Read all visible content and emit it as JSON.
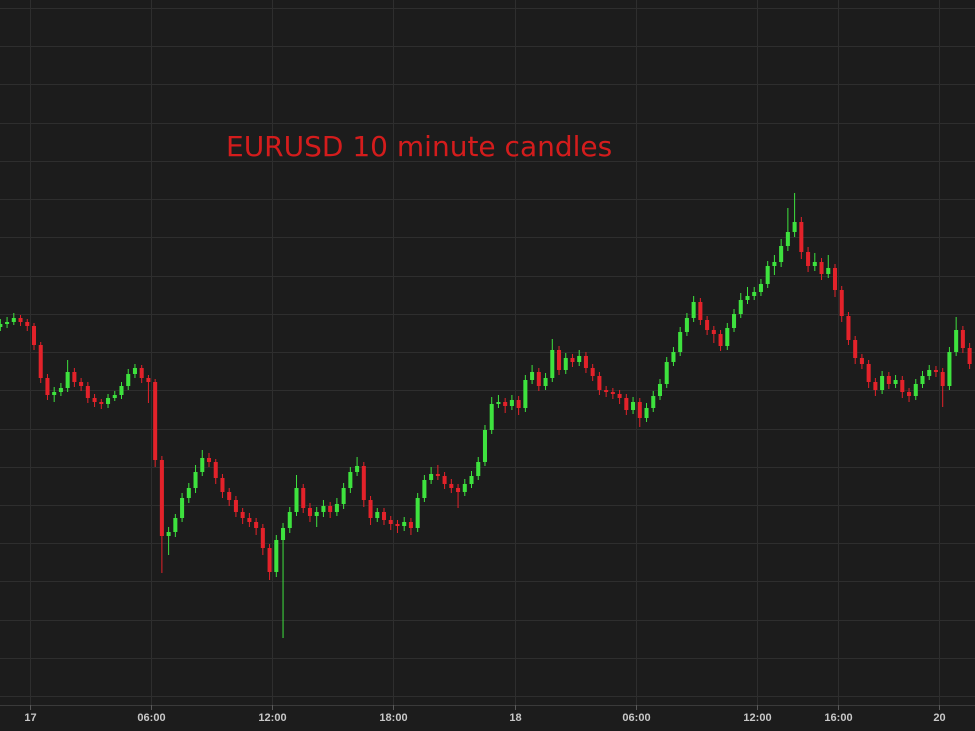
{
  "chart_data": {
    "type": "candlestick",
    "title": "EURUSD 10 minute candles",
    "xlim": [
      -89,
      2808
    ],
    "xticks": [
      {
        "value": 0,
        "label": "17"
      },
      {
        "value": 360,
        "label": "06:00"
      },
      {
        "value": 720,
        "label": "12:00"
      },
      {
        "value": 1080,
        "label": "18:00"
      },
      {
        "value": 1440,
        "label": "18"
      },
      {
        "value": 1800,
        "label": "06:00"
      },
      {
        "value": 2160,
        "label": "12:00"
      },
      {
        "value": 2400,
        "label": "16:00"
      },
      {
        "value": 2700,
        "label": "20"
      }
    ],
    "ylim": [
      0,
      705
    ],
    "yticks": [
      9,
      47,
      85,
      124,
      162,
      200,
      238,
      276,
      315,
      353,
      391,
      429,
      468,
      506,
      544,
      582,
      621,
      659,
      697
    ],
    "grid": true,
    "up_color": "#3ee23e",
    "down_color": "#e3222a",
    "x": [
      -88,
      -68,
      -48,
      -28,
      -8,
      12,
      32,
      52,
      72,
      92,
      112,
      132,
      152,
      172,
      192,
      212,
      232,
      252,
      272,
      292,
      312,
      332,
      352,
      372,
      392,
      412,
      432,
      452,
      472,
      492,
      512,
      532,
      552,
      572,
      592,
      612,
      632,
      652,
      672,
      692,
      712,
      732,
      752,
      772,
      792,
      812,
      832,
      852,
      872,
      892,
      912,
      932,
      952,
      972,
      992,
      1012,
      1032,
      1052,
      1072,
      1092,
      1112,
      1132,
      1152,
      1172,
      1192,
      1212,
      1232,
      1252,
      1272,
      1292,
      1312,
      1332,
      1352,
      1372,
      1392,
      1412,
      1432,
      1452,
      1472,
      1492,
      1512,
      1532,
      1552,
      1572,
      1592,
      1612,
      1632,
      1652,
      1672,
      1692,
      1712,
      1732,
      1752,
      1772,
      1792,
      1812,
      1832,
      1852,
      1872,
      1892,
      1912,
      1932,
      1952,
      1972,
      1992,
      2012,
      2032,
      2052,
      2072,
      2092,
      2112,
      2132,
      2152,
      2172,
      2192,
      2212,
      2232,
      2252,
      2272,
      2292,
      2312,
      2332,
      2352,
      2372,
      2392,
      2412,
      2432,
      2452,
      2472,
      2492,
      2512,
      2532,
      2552,
      2572,
      2592,
      2612,
      2632,
      2652,
      2672,
      2692,
      2712,
      2732,
      2752,
      2772,
      2792
    ],
    "candles": [
      [
        378,
        386,
        374,
        381
      ],
      [
        381,
        388,
        377,
        383
      ],
      [
        383,
        392,
        380,
        387
      ],
      [
        387,
        390,
        379,
        383
      ],
      [
        383,
        386,
        374,
        379
      ],
      [
        379,
        382,
        355,
        360
      ],
      [
        360,
        363,
        322,
        327
      ],
      [
        327,
        331,
        305,
        310
      ],
      [
        310,
        318,
        303,
        313
      ],
      [
        313,
        322,
        309,
        317
      ],
      [
        317,
        345,
        313,
        333
      ],
      [
        333,
        337,
        318,
        323
      ],
      [
        323,
        327,
        314,
        319
      ],
      [
        319,
        323,
        302,
        307
      ],
      [
        307,
        311,
        298,
        303
      ],
      [
        303,
        306,
        296,
        301
      ],
      [
        301,
        311,
        297,
        307
      ],
      [
        307,
        314,
        304,
        310
      ],
      [
        310,
        323,
        306,
        319
      ],
      [
        319,
        336,
        315,
        331
      ],
      [
        331,
        341,
        327,
        337
      ],
      [
        337,
        340,
        322,
        327
      ],
      [
        327,
        330,
        302,
        323
      ],
      [
        323,
        326,
        238,
        245
      ],
      [
        245,
        249,
        132,
        169
      ],
      [
        169,
        178,
        150,
        173
      ],
      [
        173,
        191,
        168,
        187
      ],
      [
        187,
        212,
        183,
        207
      ],
      [
        207,
        222,
        202,
        217
      ],
      [
        217,
        240,
        212,
        233
      ],
      [
        233,
        255,
        229,
        247
      ],
      [
        247,
        252,
        238,
        243
      ],
      [
        243,
        246,
        221,
        227
      ],
      [
        227,
        231,
        207,
        213
      ],
      [
        213,
        217,
        199,
        205
      ],
      [
        205,
        209,
        188,
        193
      ],
      [
        193,
        197,
        181,
        187
      ],
      [
        187,
        192,
        178,
        183
      ],
      [
        183,
        187,
        170,
        177
      ],
      [
        177,
        181,
        150,
        157
      ],
      [
        157,
        161,
        125,
        133
      ],
      [
        133,
        170,
        128,
        165
      ],
      [
        165,
        182,
        67,
        177
      ],
      [
        177,
        198,
        172,
        193
      ],
      [
        193,
        230,
        189,
        217
      ],
      [
        217,
        221,
        192,
        197
      ],
      [
        197,
        202,
        183,
        189
      ],
      [
        189,
        198,
        178,
        193
      ],
      [
        193,
        205,
        188,
        199
      ],
      [
        199,
        203,
        187,
        193
      ],
      [
        193,
        207,
        189,
        201
      ],
      [
        201,
        222,
        196,
        217
      ],
      [
        217,
        238,
        212,
        233
      ],
      [
        233,
        248,
        229,
        239
      ],
      [
        239,
        243,
        198,
        205
      ],
      [
        205,
        209,
        180,
        187
      ],
      [
        187,
        197,
        183,
        193
      ],
      [
        193,
        197,
        180,
        185
      ],
      [
        185,
        189,
        175,
        181
      ],
      [
        181,
        185,
        172,
        179
      ],
      [
        179,
        188,
        174,
        183
      ],
      [
        183,
        187,
        170,
        177
      ],
      [
        177,
        212,
        173,
        207
      ],
      [
        207,
        230,
        203,
        225
      ],
      [
        225,
        238,
        221,
        231
      ],
      [
        231,
        240,
        225,
        229
      ],
      [
        229,
        233,
        216,
        221
      ],
      [
        221,
        226,
        212,
        217
      ],
      [
        217,
        221,
        197,
        213
      ],
      [
        213,
        226,
        209,
        221
      ],
      [
        221,
        234,
        217,
        229
      ],
      [
        229,
        248,
        225,
        243
      ],
      [
        243,
        280,
        239,
        275
      ],
      [
        275,
        308,
        271,
        301
      ],
      [
        301,
        310,
        297,
        303
      ],
      [
        303,
        307,
        292,
        299
      ],
      [
        299,
        310,
        295,
        305
      ],
      [
        305,
        309,
        290,
        297
      ],
      [
        297,
        330,
        293,
        325
      ],
      [
        325,
        340,
        321,
        333
      ],
      [
        333,
        337,
        314,
        319
      ],
      [
        319,
        332,
        315,
        327
      ],
      [
        327,
        366,
        323,
        355
      ],
      [
        355,
        359,
        330,
        335
      ],
      [
        335,
        352,
        331,
        347
      ],
      [
        347,
        351,
        338,
        343
      ],
      [
        343,
        355,
        339,
        349
      ],
      [
        349,
        353,
        332,
        337
      ],
      [
        337,
        341,
        324,
        329
      ],
      [
        329,
        333,
        310,
        315
      ],
      [
        315,
        319,
        308,
        313
      ],
      [
        313,
        317,
        306,
        311
      ],
      [
        311,
        315,
        301,
        307
      ],
      [
        307,
        311,
        290,
        295
      ],
      [
        295,
        308,
        291,
        303
      ],
      [
        303,
        307,
        278,
        287
      ],
      [
        287,
        302,
        283,
        297
      ],
      [
        297,
        314,
        293,
        309
      ],
      [
        309,
        326,
        305,
        321
      ],
      [
        321,
        348,
        317,
        343
      ],
      [
        343,
        358,
        339,
        353
      ],
      [
        353,
        378,
        349,
        373
      ],
      [
        373,
        392,
        369,
        387
      ],
      [
        387,
        409,
        383,
        403
      ],
      [
        403,
        407,
        380,
        385
      ],
      [
        385,
        389,
        370,
        375
      ],
      [
        375,
        379,
        362,
        371
      ],
      [
        371,
        375,
        354,
        359
      ],
      [
        359,
        382,
        355,
        377
      ],
      [
        377,
        396,
        373,
        391
      ],
      [
        391,
        412,
        387,
        405
      ],
      [
        405,
        418,
        401,
        409
      ],
      [
        409,
        418,
        405,
        413
      ],
      [
        413,
        426,
        409,
        421
      ],
      [
        421,
        444,
        417,
        439
      ],
      [
        439,
        450,
        430,
        443
      ],
      [
        443,
        466,
        438,
        459
      ],
      [
        459,
        497,
        454,
        473
      ],
      [
        473,
        512,
        468,
        483
      ],
      [
        483,
        488,
        446,
        453
      ],
      [
        453,
        458,
        433,
        439
      ],
      [
        439,
        452,
        434,
        443
      ],
      [
        443,
        447,
        425,
        431
      ],
      [
        431,
        450,
        427,
        437
      ],
      [
        437,
        441,
        408,
        415
      ],
      [
        415,
        419,
        383,
        389
      ],
      [
        389,
        393,
        360,
        365
      ],
      [
        365,
        369,
        341,
        347
      ],
      [
        347,
        351,
        336,
        341
      ],
      [
        341,
        345,
        317,
        323
      ],
      [
        323,
        327,
        309,
        315
      ],
      [
        315,
        334,
        311,
        329
      ],
      [
        329,
        333,
        316,
        321
      ],
      [
        321,
        330,
        317,
        325
      ],
      [
        325,
        329,
        307,
        313
      ],
      [
        313,
        317,
        303,
        309
      ],
      [
        309,
        326,
        305,
        321
      ],
      [
        321,
        334,
        317,
        329
      ],
      [
        329,
        340,
        325,
        335
      ],
      [
        335,
        339,
        328,
        333
      ],
      [
        333,
        337,
        298,
        319
      ],
      [
        319,
        358,
        315,
        353
      ],
      [
        353,
        388,
        349,
        375
      ],
      [
        375,
        379,
        352,
        357
      ],
      [
        357,
        362,
        336,
        341
      ]
    ]
  }
}
